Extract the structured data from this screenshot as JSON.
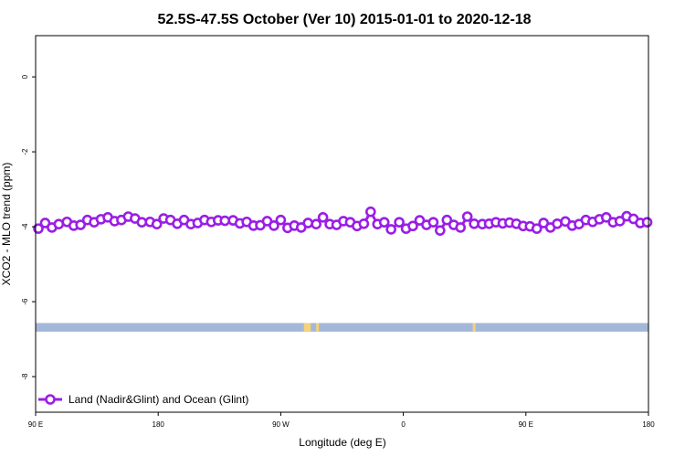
{
  "chart_data": {
    "type": "line",
    "title": "52.5S-47.5S October (Ver 10)   2015-01-01 to 2020-12-18",
    "xlabel": "Longitude (deg E)",
    "ylabel": "XCO2 - MLO trend (ppm)",
    "x_ticks": [
      {
        "value": 90,
        "label": "90 E"
      },
      {
        "value": 180,
        "label": "180"
      },
      {
        "value": 270,
        "label": "90 W"
      },
      {
        "value": 360,
        "label": "0"
      },
      {
        "value": 450,
        "label": "90 E"
      },
      {
        "value": 540,
        "label": "180"
      }
    ],
    "y_ticks": [
      {
        "value": 0,
        "label": "0"
      },
      {
        "value": -2,
        "label": "-2"
      },
      {
        "value": -4,
        "label": "-4"
      },
      {
        "value": -6,
        "label": "-6"
      },
      {
        "value": -8,
        "label": "-8"
      }
    ],
    "xlim": [
      90,
      540
    ],
    "ylim": [
      -8.95,
      1.1
    ],
    "grid": false,
    "legend_position": "bottom-left",
    "series": [
      {
        "name": "Land (Nadir&Glint) and Ocean (Glint)",
        "color": "#9a1ee6",
        "x": [
          92,
          97,
          102,
          107,
          113,
          118,
          123,
          128,
          133,
          138,
          143,
          148,
          153,
          158,
          163,
          168,
          174,
          179,
          184,
          189,
          194,
          199,
          204,
          209,
          214,
          219,
          224,
          229,
          235,
          240,
          245,
          250,
          255,
          260,
          265,
          270,
          275,
          280,
          285,
          290,
          296,
          301,
          306,
          311,
          316,
          321,
          326,
          331,
          336,
          341,
          346,
          351,
          357,
          362,
          367,
          372,
          377,
          382,
          387,
          392,
          397,
          402,
          407,
          412,
          418,
          423,
          428,
          433,
          438,
          443,
          448,
          453,
          458,
          463,
          468,
          473,
          479,
          484,
          489,
          494,
          499,
          504,
          509,
          514,
          519,
          524,
          529,
          534,
          539
        ],
        "y": [
          -4.05,
          -3.9,
          -4.02,
          -3.93,
          -3.87,
          -3.97,
          -3.95,
          -3.82,
          -3.88,
          -3.8,
          -3.75,
          -3.85,
          -3.82,
          -3.73,
          -3.78,
          -3.88,
          -3.87,
          -3.93,
          -3.78,
          -3.82,
          -3.92,
          -3.82,
          -3.93,
          -3.9,
          -3.82,
          -3.87,
          -3.83,
          -3.84,
          -3.83,
          -3.91,
          -3.87,
          -3.97,
          -3.96,
          -3.85,
          -3.97,
          -3.82,
          -4.03,
          -3.97,
          -4.02,
          -3.9,
          -3.93,
          -3.75,
          -3.93,
          -3.95,
          -3.85,
          -3.88,
          -3.98,
          -3.92,
          -3.6,
          -3.93,
          -3.88,
          -4.07,
          -3.88,
          -4.05,
          -3.98,
          -3.83,
          -3.95,
          -3.88,
          -4.1,
          -3.82,
          -3.95,
          -4.02,
          -3.73,
          -3.92,
          -3.93,
          -3.92,
          -3.88,
          -3.91,
          -3.89,
          -3.92,
          -3.98,
          -3.99,
          -4.05,
          -3.9,
          -4.02,
          -3.92,
          -3.86,
          -3.97,
          -3.93,
          -3.82,
          -3.87,
          -3.8,
          -3.75,
          -3.88,
          -3.85,
          -3.72,
          -3.79,
          -3.9,
          -3.88
        ]
      }
    ],
    "surface_band": {
      "y_top": -6.57,
      "y_bottom": -6.8,
      "ocean_color": "#a3b8d9",
      "land_color": "#f5d27a",
      "land_segments": [
        {
          "x_start": 287,
          "x_end": 292
        },
        {
          "x_start": 296,
          "x_end": 298
        },
        {
          "x_start": 411,
          "x_end": 413
        }
      ]
    }
  }
}
